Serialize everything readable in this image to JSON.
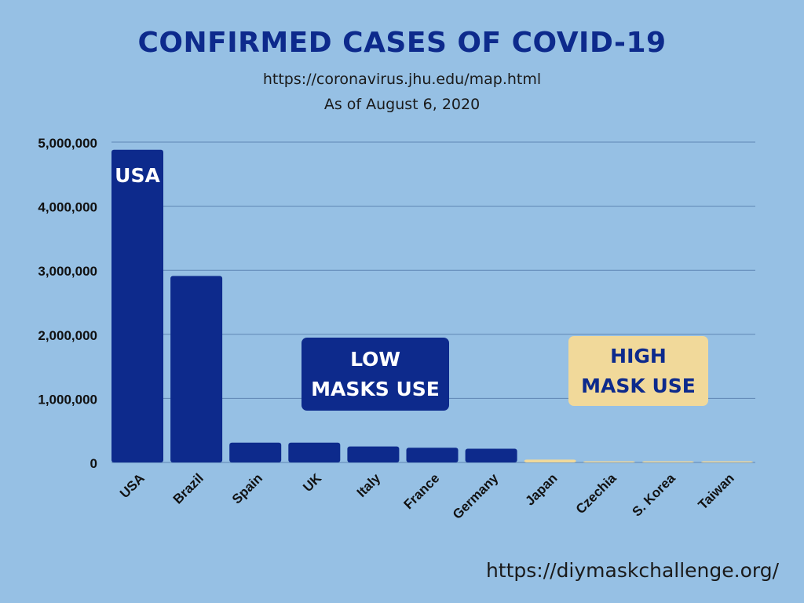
{
  "title": "CONFIRMED CASES OF COVID-19",
  "subtitle_source": "https://coronavirus.jhu.edu/map.html",
  "subtitle_date": "As of August 6, 2020",
  "footer_url": "https://diymaskchallenge.org/",
  "callouts": {
    "low": [
      "LOW",
      "MASKS USE"
    ],
    "high": [
      "HIGH",
      "MASK USE"
    ]
  },
  "bar_label_usa": "USA",
  "colors": {
    "background": "#96c0e4",
    "low_mask": "#0d2a8c",
    "high_mask": "#f1d99a",
    "grid": "#5f86b3"
  },
  "chart_data": {
    "type": "bar",
    "title": "CONFIRMED CASES OF COVID-19",
    "xlabel": "",
    "ylabel": "",
    "ylim": [
      0,
      5000000
    ],
    "yticks": [
      0,
      1000000,
      2000000,
      3000000,
      4000000,
      5000000
    ],
    "ytick_labels": [
      "0",
      "1,000,000",
      "2,000,000",
      "3,000,000",
      "4,000,000",
      "5,000,000"
    ],
    "grid": true,
    "categories": [
      "USA",
      "Brazil",
      "Spain",
      "UK",
      "Italy",
      "France",
      "Germany",
      "Japan",
      "Czechia",
      "S. Korea",
      "Taiwan"
    ],
    "values": [
      4880000,
      2910000,
      310000,
      310000,
      250000,
      230000,
      215000,
      45000,
      18000,
      15000,
      500
    ],
    "groups": [
      "low",
      "low",
      "low",
      "low",
      "low",
      "low",
      "low",
      "high",
      "high",
      "high",
      "high"
    ]
  }
}
